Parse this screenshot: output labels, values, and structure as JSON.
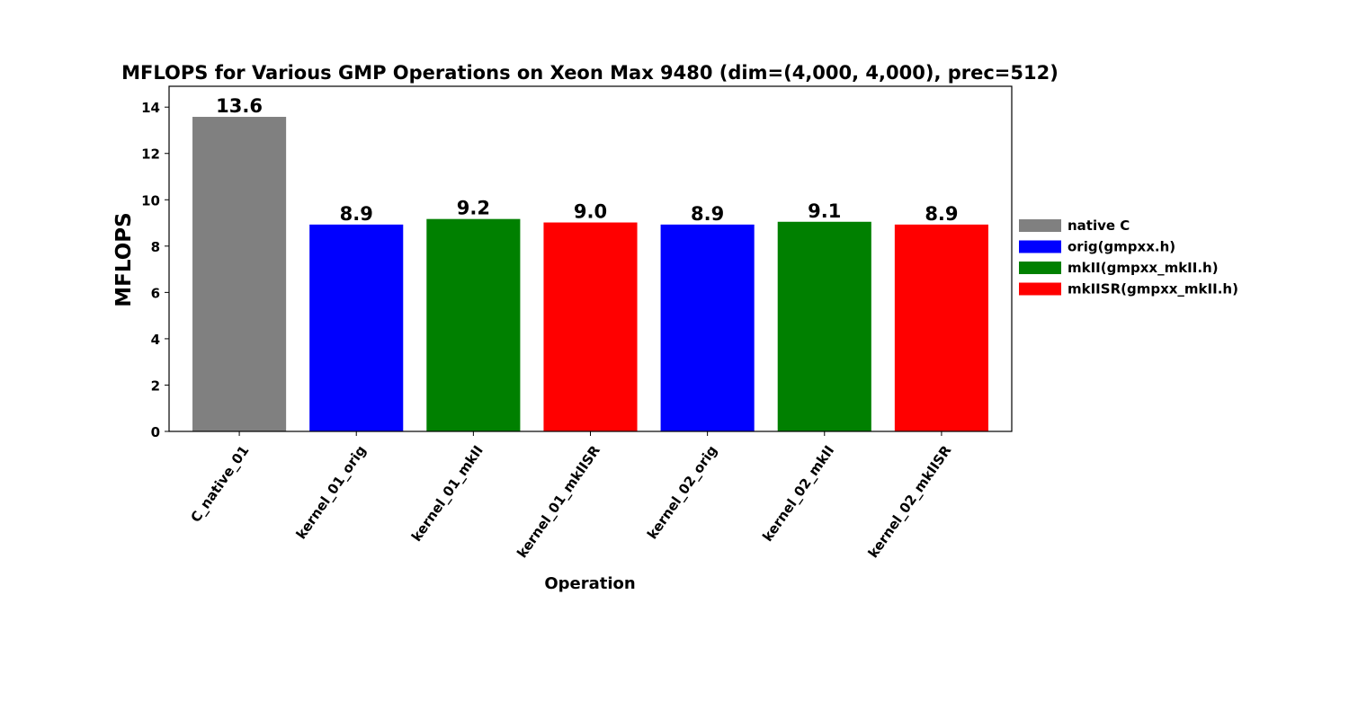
{
  "chart_data": {
    "type": "bar",
    "title": "MFLOPS for Various GMP Operations on Xeon Max 9480 (dim=(4,000, 4,000), prec=512)",
    "xlabel": "Operation",
    "ylabel": "MFLOPS",
    "ylim": [
      0,
      14.9
    ],
    "yticks": [
      0,
      2,
      4,
      6,
      8,
      10,
      12,
      14
    ],
    "grid": false,
    "legend_position": "right",
    "categories": [
      "C_native_01",
      "kernel_01_orig",
      "kernel_01_mkII",
      "kernel_01_mkIISR",
      "kernel_02_orig",
      "kernel_02_mkII",
      "kernel_02_mkIISR"
    ],
    "values": [
      13.58,
      8.93,
      9.17,
      9.02,
      8.93,
      9.05,
      8.93
    ],
    "value_labels": [
      "13.6",
      "8.9",
      "9.2",
      "9.0",
      "8.9",
      "9.1",
      "8.9"
    ],
    "bar_groups": [
      "native C",
      "orig(gmpxx.h)",
      "mkII(gmpxx_mkII.h)",
      "mkIISR(gmpxx_mkII.h)",
      "orig(gmpxx.h)",
      "mkII(gmpxx_mkII.h)",
      "mkIISR(gmpxx_mkII.h)"
    ],
    "legend": [
      {
        "name": "native C",
        "color": "#808080"
      },
      {
        "name": "orig(gmpxx.h)",
        "color": "#0000ff"
      },
      {
        "name": "mkII(gmpxx_mkII.h)",
        "color": "#008000"
      },
      {
        "name": "mkIISR(gmpxx_mkII.h)",
        "color": "#ff0000"
      }
    ]
  }
}
